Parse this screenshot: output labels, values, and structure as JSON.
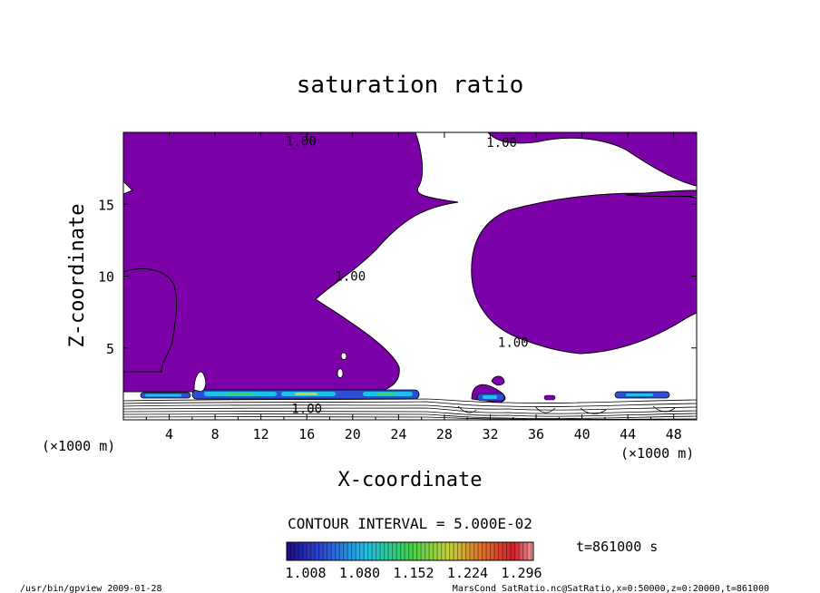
{
  "chart_data": {
    "type": "contour",
    "title": "saturation ratio",
    "xlabel": "X-coordinate",
    "ylabel": "Z-coordinate",
    "x_unit": "(×1000 m)",
    "y_unit": "(×1000 m)",
    "xlim": [
      0,
      50
    ],
    "ylim": [
      0,
      20
    ],
    "x_ticks": [
      4,
      8,
      12,
      16,
      20,
      24,
      28,
      32,
      36,
      40,
      44,
      48
    ],
    "y_ticks": [
      5,
      10,
      15
    ],
    "contour_interval_text": "CONTOUR INTERVAL = 5.000E-02",
    "time_text": "t=861000 s",
    "contour_labels": [
      {
        "text": "1.00",
        "x": 15.5,
        "z": 19.4
      },
      {
        "text": "1.00",
        "x": 33.0,
        "z": 19.3
      },
      {
        "text": "1.00",
        "x": 19.8,
        "z": 10.0
      },
      {
        "text": "1.00",
        "x": 34.0,
        "z": 5.4
      },
      {
        "text": "1.00",
        "x": 16.0,
        "z": 0.8
      }
    ],
    "filled_region_color": "#7b00a8",
    "colorbar": {
      "tick_labels": [
        "1.008",
        "1.080",
        "1.152",
        "1.224",
        "1.296"
      ],
      "colors": [
        "#1a0a8a",
        "#2c4fd6",
        "#1fc0e8",
        "#3fd24a",
        "#c8d23a",
        "#e06a2a",
        "#d0202a",
        "#f0a0a0"
      ]
    }
  },
  "footer": {
    "left": "/usr/bin/gpview   2009-01-28",
    "right": "MarsCond_SatRatio.nc@SatRatio,x=0:50000,z=0:20000,t=861000"
  }
}
